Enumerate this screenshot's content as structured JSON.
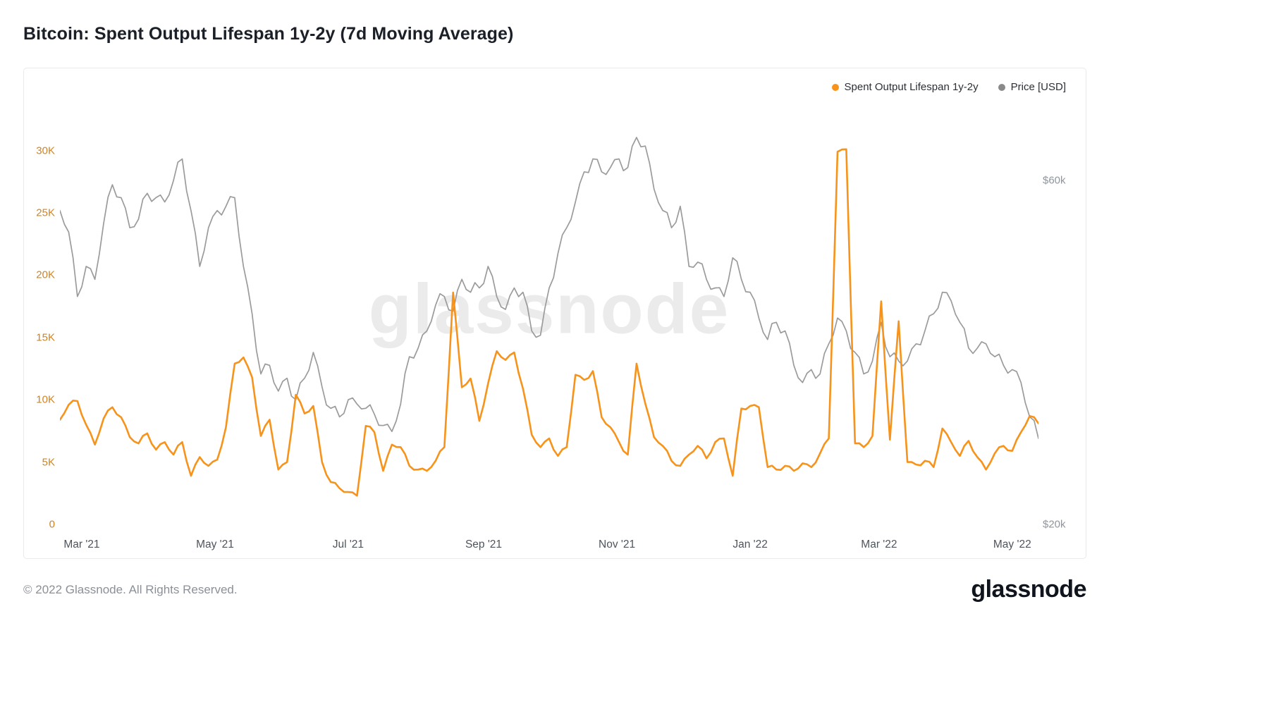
{
  "header": {
    "title": "Bitcoin: Spent Output Lifespan 1y-2y (7d Moving Average)"
  },
  "legend": [
    {
      "label": "Spent Output Lifespan 1y-2y",
      "color": "#f7931a"
    },
    {
      "label": "Price [USD]",
      "color": "#8a8a8a"
    }
  ],
  "watermark": "glassnode",
  "footer": {
    "copyright": "© 2022 Glassnode. All Rights Reserved.",
    "logo": "glassnode"
  },
  "colors": {
    "accent_orange": "#f7931a",
    "price_gray": "#9b9b9b",
    "left_axis_label": "#cf8424",
    "right_axis_label": "#8f959e",
    "watermark": "#ebebeb",
    "card_border": "#e8eaec"
  },
  "chart_data": {
    "type": "line",
    "title": "Bitcoin: Spent Output Lifespan 1y-2y (7d Moving Average)",
    "grid": "off",
    "legend_position": "top-right",
    "x_start": "2021-02-19",
    "x_end": "2022-05-13",
    "point_interval_days": 4,
    "x_ticks": [
      {
        "label": "Mar '21",
        "f": 0.0223
      },
      {
        "label": "May '21",
        "f": 0.1585
      },
      {
        "label": "Jul '21",
        "f": 0.2946
      },
      {
        "label": "Sep '21",
        "f": 0.433
      },
      {
        "label": "Nov '21",
        "f": 0.5692
      },
      {
        "label": "Jan '22",
        "f": 0.7054
      },
      {
        "label": "Mar '22",
        "f": 0.8371
      },
      {
        "label": "May '22",
        "f": 0.9732
      }
    ],
    "left_axis": {
      "name": "Spent Output Lifespan 1y-2y",
      "unit": "thousands",
      "range": [
        0,
        34.5
      ],
      "ticks": [
        {
          "label": "0",
          "value": 0
        },
        {
          "label": "5K",
          "value": 5
        },
        {
          "label": "10K",
          "value": 10
        },
        {
          "label": "15K",
          "value": 15
        },
        {
          "label": "20K",
          "value": 20
        },
        {
          "label": "25K",
          "value": 25
        },
        {
          "label": "30K",
          "value": 30
        }
      ]
    },
    "right_axis": {
      "name": "Price [USD]",
      "unit": "USD thousands",
      "range": [
        20,
        70
      ],
      "ticks": [
        {
          "label": "$20k",
          "value": 20
        },
        {
          "label": "$60k",
          "value": 60
        }
      ]
    },
    "series": [
      {
        "name": "Spent Output Lifespan 1y-2y",
        "axis": "left",
        "color": "#f7931a",
        "values": [
          8.4,
          9.6,
          9.9,
          8.0,
          6.4,
          8.5,
          9.4,
          8.6,
          7.0,
          6.5,
          7.3,
          6.0,
          6.6,
          5.6,
          6.6,
          3.9,
          5.4,
          4.7,
          5.2,
          7.8,
          12.9,
          13.4,
          11.8,
          7.1,
          8.4,
          4.4,
          5.0,
          10.4,
          8.9,
          9.5,
          5.0,
          3.4,
          2.9,
          2.6,
          2.3,
          7.9,
          7.4,
          4.3,
          6.4,
          6.2,
          4.7,
          4.4,
          4.3,
          5.1,
          6.2,
          18.6,
          11.0,
          11.7,
          8.3,
          11.3,
          13.9,
          13.2,
          13.8,
          10.9,
          7.2,
          6.2,
          6.9,
          5.5,
          6.2,
          12.0,
          11.6,
          12.3,
          8.6,
          7.8,
          6.6,
          5.6,
          12.9,
          9.7,
          7.0,
          6.3,
          5.1,
          4.7,
          5.6,
          6.3,
          5.3,
          6.6,
          6.9,
          3.9,
          9.3,
          9.5,
          9.4,
          4.6,
          4.4,
          4.7,
          4.3,
          4.9,
          4.6,
          5.7,
          6.9,
          29.9,
          30.1,
          6.5,
          6.2,
          7.1,
          17.9,
          6.8,
          16.3,
          5.0,
          4.8,
          5.1,
          4.6,
          7.7,
          6.6,
          5.5,
          6.7,
          5.4,
          4.4,
          5.7,
          6.3,
          5.9,
          7.4,
          8.7,
          8.1
        ]
      },
      {
        "name": "Price [USD]",
        "axis": "right",
        "color": "#9b9b9b",
        "values": [
          56.5,
          54.0,
          46.5,
          50.0,
          48.5,
          55.0,
          59.5,
          58.0,
          54.5,
          55.5,
          58.5,
          58.0,
          57.5,
          60.0,
          62.5,
          56.5,
          50.0,
          54.5,
          56.5,
          57.0,
          58.0,
          50.0,
          44.5,
          37.5,
          38.5,
          35.5,
          37.0,
          34.5,
          37.0,
          40.0,
          36.0,
          33.5,
          32.5,
          34.5,
          34.0,
          33.5,
          32.8,
          31.5,
          30.8,
          34.0,
          39.5,
          40.5,
          42.5,
          45.5,
          46.5,
          44.8,
          48.5,
          47.0,
          47.5,
          50.0,
          46.5,
          45.0,
          47.5,
          47.0,
          42.5,
          42.0,
          47.5,
          51.5,
          54.5,
          57.5,
          61.0,
          62.5,
          61.0,
          61.5,
          62.5,
          61.5,
          65.0,
          64.0,
          59.0,
          56.5,
          54.5,
          57.0,
          50.0,
          50.5,
          48.5,
          47.5,
          46.5,
          51.0,
          48.5,
          47.0,
          44.0,
          41.5,
          43.5,
          42.5,
          38.5,
          36.5,
          38.0,
          37.5,
          41.0,
          44.0,
          42.5,
          40.0,
          37.5,
          39.0,
          43.5,
          39.5,
          39.0,
          39.0,
          41.0,
          42.5,
          44.5,
          47.0,
          46.0,
          43.5,
          40.5,
          40.5,
          41.0,
          39.5,
          38.5,
          38.0,
          36.5,
          32.5,
          30.0
        ]
      }
    ]
  }
}
